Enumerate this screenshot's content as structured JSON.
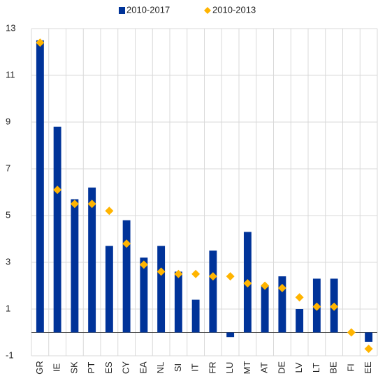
{
  "chart_data": {
    "type": "bar",
    "categories": [
      "GR",
      "IE",
      "SK",
      "PT",
      "ES",
      "CY",
      "EA",
      "NL",
      "SI",
      "IT",
      "FR",
      "LU",
      "MT",
      "AT",
      "DE",
      "LV",
      "LT",
      "BE",
      "FI",
      "EE"
    ],
    "series": [
      {
        "name": "2010-2017",
        "type": "bar",
        "color": "#003399",
        "values": [
          12.5,
          8.8,
          5.7,
          6.2,
          3.7,
          4.8,
          3.2,
          3.7,
          2.6,
          1.4,
          3.5,
          -0.2,
          4.3,
          2.0,
          2.4,
          1.0,
          2.3,
          2.3,
          0.0,
          -0.4
        ]
      },
      {
        "name": "2010-2013",
        "type": "scatter",
        "color": "#ffb400",
        "values": [
          12.4,
          6.1,
          5.5,
          5.5,
          5.2,
          3.8,
          2.9,
          2.6,
          2.5,
          2.5,
          2.4,
          2.4,
          2.1,
          2.0,
          1.9,
          1.5,
          1.1,
          1.1,
          0.0,
          -0.7
        ]
      }
    ],
    "ylim": [
      -1,
      13
    ],
    "yticks": [
      -1,
      1,
      3,
      5,
      7,
      9,
      11,
      13
    ],
    "grid": true,
    "legend": "top"
  }
}
